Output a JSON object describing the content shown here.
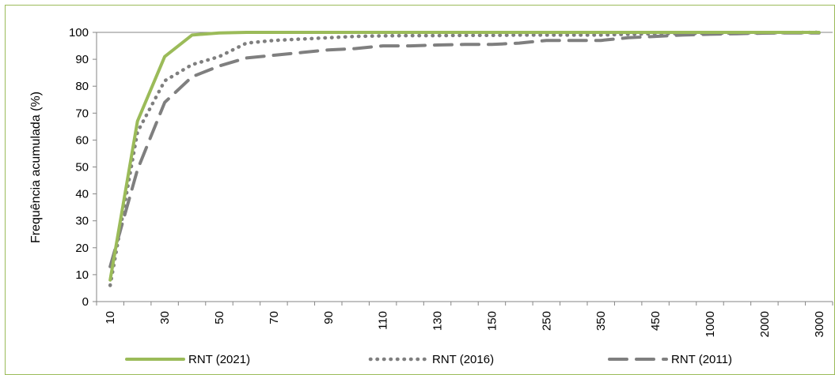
{
  "chart_data": {
    "type": "line",
    "xlabel": "",
    "ylabel": "Frequência acumulada (%)",
    "ylim": [
      0,
      100
    ],
    "yticks": [
      0,
      10,
      20,
      30,
      40,
      50,
      60,
      70,
      80,
      90,
      100
    ],
    "categories": [
      "10",
      "20",
      "30",
      "40",
      "50",
      "60",
      "70",
      "80",
      "90",
      "100",
      "110",
      "120",
      "130",
      "140",
      "150",
      "200",
      "250",
      "300",
      "350",
      "400",
      "450",
      "500",
      "1000",
      "1500",
      "2000",
      "2500",
      "3000"
    ],
    "xtick_labels": [
      "10",
      "",
      "30",
      "",
      "50",
      "",
      "70",
      "",
      "90",
      "",
      "110",
      "",
      "130",
      "",
      "150",
      "",
      "250",
      "",
      "350",
      "",
      "450",
      "",
      "1000",
      "",
      "2000",
      "",
      "3000"
    ],
    "legend_position": "bottom",
    "series": [
      {
        "name": "RNT (2021)",
        "style": "solid",
        "color": "#9bbb59",
        "values": [
          8,
          67,
          91,
          99,
          99.8,
          100,
          100,
          100,
          100,
          100,
          100,
          100,
          100,
          100,
          100,
          100,
          100,
          100,
          100,
          100,
          100,
          100,
          100,
          100,
          100,
          100,
          100
        ]
      },
      {
        "name": "RNT (2016)",
        "style": "dotted",
        "color": "#7f7f7f",
        "values": [
          6,
          63,
          82,
          88,
          91,
          96,
          97,
          97.5,
          98,
          98.5,
          98.7,
          98.8,
          98.8,
          98.9,
          98.9,
          99,
          99,
          99,
          99,
          99.3,
          99.5,
          99.6,
          99.7,
          99.8,
          99.9,
          99.9,
          100
        ]
      },
      {
        "name": "RNT (2011)",
        "style": "dashed",
        "color": "#7f7f7f",
        "values": [
          13,
          49,
          74,
          83.5,
          87.5,
          90.5,
          91.5,
          92.5,
          93.5,
          94,
          95,
          95,
          95.3,
          95.5,
          95.5,
          96,
          97,
          97,
          97,
          98,
          98.5,
          99,
          99.3,
          99.5,
          99.7,
          99.8,
          99.8
        ]
      }
    ]
  }
}
